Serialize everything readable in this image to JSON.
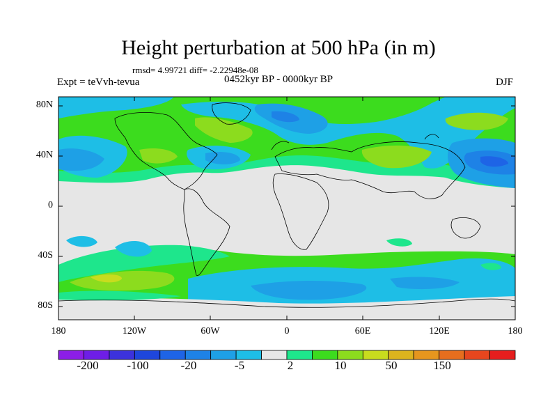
{
  "title": "Height perturbation at 500 hPa (in m)",
  "stats": "rmsd= 4.99721 diff= -2.22948e-08",
  "expt": "Expt = teVvh-tevua",
  "period": "0452kyr BP - 0000kyr BP",
  "season": "DJF",
  "lat_ticks": [
    "80N",
    "40N",
    "0",
    "40S",
    "80S"
  ],
  "lon_ticks": [
    "180",
    "120W",
    "60W",
    "0",
    "60E",
    "120E",
    "180"
  ],
  "colorbar": {
    "colors": [
      "#8c1ee6",
      "#6e1ee6",
      "#3c32dc",
      "#1e46dc",
      "#1e64e6",
      "#1e82e6",
      "#1ea0e6",
      "#1ebee6",
      "#e6e6e6",
      "#1ee68c",
      "#3cdc1e",
      "#8cdc1e",
      "#c8dc1e",
      "#dcb41e",
      "#e6961e",
      "#e66e1e",
      "#e6461e",
      "#e61e1e"
    ],
    "labels": [
      "-200",
      "-100",
      "-20",
      "-5",
      "2",
      "10",
      "50",
      "150"
    ]
  }
}
